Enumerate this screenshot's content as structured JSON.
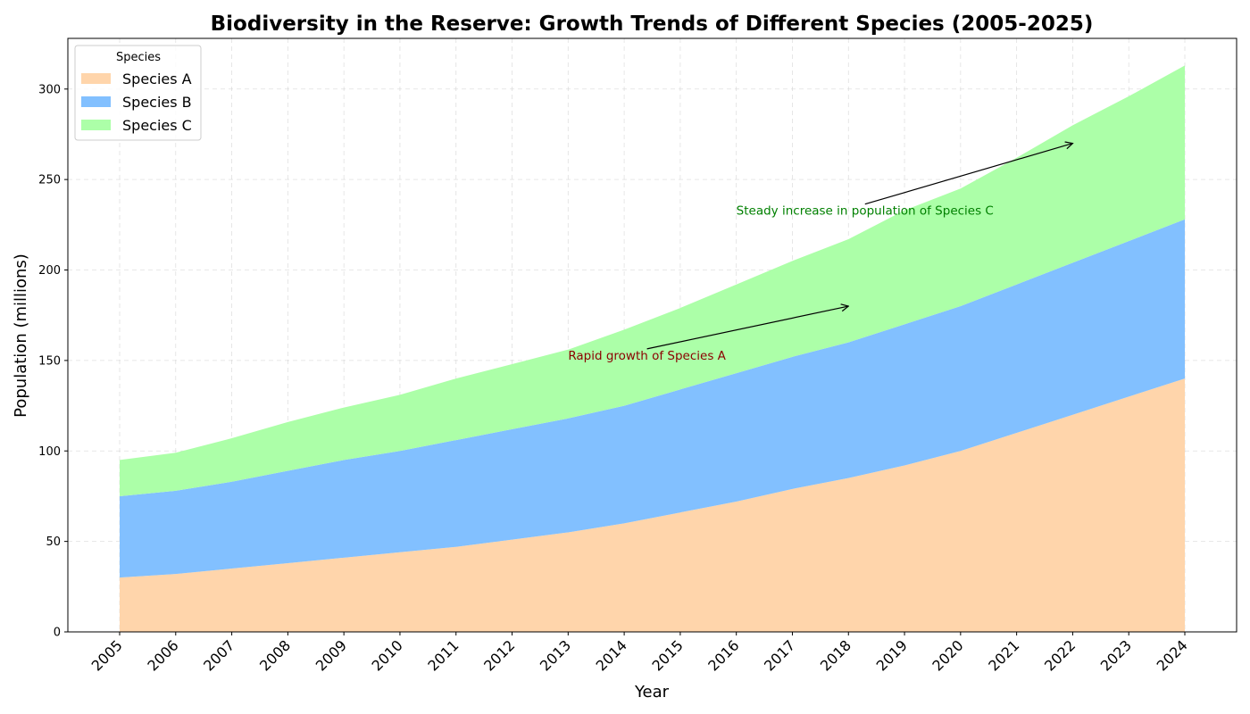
{
  "chart_data": {
    "type": "area",
    "stacked": true,
    "title": "Biodiversity in the Reserve: Growth Trends of Different Species (2005-2025)",
    "xlabel": "Year",
    "ylabel": "Population (millions)",
    "x": [
      "2005",
      "2006",
      "2007",
      "2008",
      "2009",
      "2010",
      "2011",
      "2012",
      "2013",
      "2014",
      "2015",
      "2016",
      "2017",
      "2018",
      "2019",
      "2020",
      "2021",
      "2022",
      "2023",
      "2024"
    ],
    "ylim": [
      0,
      328
    ],
    "yticks": [
      "0",
      "50",
      "100",
      "150",
      "200",
      "250",
      "300"
    ],
    "grid": true,
    "legend": {
      "title": "Species",
      "position": "top-left"
    },
    "series": [
      {
        "name": "Species A",
        "color": "#ffd5ab",
        "values": [
          30,
          32,
          35,
          38,
          41,
          44,
          47,
          51,
          55,
          60,
          66,
          72,
          79,
          85,
          92,
          100,
          110,
          120,
          130,
          140
        ]
      },
      {
        "name": "Species B",
        "color": "#82c0ff",
        "values": [
          45,
          46,
          48,
          51,
          54,
          56,
          59,
          61,
          63,
          65,
          68,
          71,
          73,
          75,
          78,
          80,
          82,
          84,
          86,
          88
        ]
      },
      {
        "name": "Species C",
        "color": "#acffa8",
        "values": [
          20,
          21,
          24,
          27,
          29,
          31,
          34,
          36,
          38,
          42,
          45,
          49,
          53,
          57,
          63,
          65,
          70,
          76,
          80,
          85
        ]
      }
    ],
    "annotations": [
      {
        "text": "Rapid growth of Species A",
        "color": "#8b0000",
        "text_at": [
          "2013",
          150
        ],
        "arrow_to": [
          "2018",
          180
        ]
      },
      {
        "text": "Steady increase in population of Species C",
        "color": "#008000",
        "text_at": [
          "2016",
          230
        ],
        "arrow_to": [
          "2022",
          270
        ]
      }
    ]
  }
}
